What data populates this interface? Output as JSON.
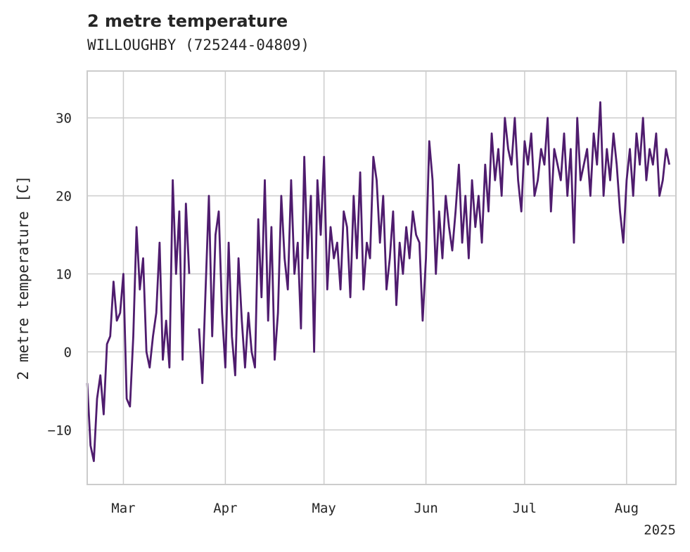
{
  "chart_data": {
    "type": "line",
    "title": "2 metre temperature",
    "subtitle": "WILLOUGHBY (725244-04809)",
    "xlabel": "",
    "ylabel": "2 metre temperature [C]",
    "xlim": [
      "2025-02-18",
      "2025-08-16"
    ],
    "ylim": [
      -17,
      36
    ],
    "yticks": [
      -10,
      0,
      10,
      20,
      30
    ],
    "xticks": [
      {
        "date": "2025-03-01",
        "label": "Mar"
      },
      {
        "date": "2025-04-01",
        "label": "Apr"
      },
      {
        "date": "2025-05-01",
        "label": "May"
      },
      {
        "date": "2025-06-01",
        "label": "Jun"
      },
      {
        "date": "2025-07-01",
        "label": "Jul"
      },
      {
        "date": "2025-08-01",
        "label": "Aug"
      }
    ],
    "year_label": "2025",
    "grid": true,
    "series": [
      {
        "color": "#4f1c6e",
        "x": [
          "2025-02-18",
          "2025-02-19",
          "2025-02-20",
          "2025-02-21",
          "2025-02-22",
          "2025-02-23",
          "2025-02-24",
          "2025-02-25",
          "2025-02-26",
          "2025-02-27",
          "2025-02-28",
          "2025-03-01",
          "2025-03-02",
          "2025-03-03",
          "2025-03-04",
          "2025-03-05",
          "2025-03-06",
          "2025-03-07",
          "2025-03-08",
          "2025-03-09",
          "2025-03-10",
          "2025-03-11",
          "2025-03-12",
          "2025-03-13",
          "2025-03-14",
          "2025-03-15",
          "2025-03-16",
          "2025-03-17",
          "2025-03-18",
          "2025-03-19",
          "2025-03-20",
          "2025-03-21",
          null,
          "2025-03-24",
          "2025-03-25",
          "2025-03-26",
          "2025-03-27",
          "2025-03-28",
          "2025-03-29",
          "2025-03-30",
          "2025-03-31",
          "2025-04-01",
          "2025-04-02",
          "2025-04-03",
          "2025-04-04",
          "2025-04-05",
          "2025-04-06",
          "2025-04-07",
          "2025-04-08",
          "2025-04-09",
          "2025-04-10",
          "2025-04-11",
          "2025-04-12",
          "2025-04-13",
          "2025-04-14",
          "2025-04-15",
          "2025-04-16",
          "2025-04-17",
          "2025-04-18",
          "2025-04-19",
          "2025-04-20",
          "2025-04-21",
          "2025-04-22",
          "2025-04-23",
          "2025-04-24",
          "2025-04-25",
          "2025-04-26",
          "2025-04-27",
          "2025-04-28",
          "2025-04-29",
          "2025-04-30",
          "2025-05-01",
          "2025-05-02",
          "2025-05-03",
          "2025-05-04",
          "2025-05-05",
          "2025-05-06",
          "2025-05-07",
          "2025-05-08",
          "2025-05-09",
          "2025-05-10",
          "2025-05-11",
          "2025-05-12",
          "2025-05-13",
          "2025-05-14",
          "2025-05-15",
          "2025-05-16",
          "2025-05-17",
          "2025-05-18",
          "2025-05-19",
          "2025-05-20",
          "2025-05-21",
          "2025-05-22",
          "2025-05-23",
          "2025-05-24",
          "2025-05-25",
          "2025-05-26",
          "2025-05-27",
          "2025-05-28",
          "2025-05-29",
          "2025-05-30",
          "2025-05-31",
          "2025-06-01",
          "2025-06-02",
          "2025-06-03",
          "2025-06-04",
          "2025-06-05",
          "2025-06-06",
          "2025-06-07",
          "2025-06-08",
          "2025-06-09",
          "2025-06-10",
          "2025-06-11",
          "2025-06-12",
          "2025-06-13",
          "2025-06-14",
          "2025-06-15",
          "2025-06-16",
          "2025-06-17",
          "2025-06-18",
          "2025-06-19",
          "2025-06-20",
          "2025-06-21",
          "2025-06-22",
          "2025-06-23",
          "2025-06-24",
          "2025-06-25",
          "2025-06-26",
          "2025-06-27",
          "2025-06-28",
          "2025-06-29",
          "2025-06-30",
          "2025-07-01",
          "2025-07-02",
          "2025-07-03",
          "2025-07-04",
          "2025-07-05",
          "2025-07-06",
          "2025-07-07",
          "2025-07-08",
          "2025-07-09",
          "2025-07-10",
          "2025-07-11",
          "2025-07-12",
          "2025-07-13",
          "2025-07-14",
          "2025-07-15",
          "2025-07-16",
          "2025-07-17",
          "2025-07-18",
          "2025-07-19",
          "2025-07-20",
          "2025-07-21",
          "2025-07-22",
          "2025-07-23",
          "2025-07-24",
          "2025-07-25",
          "2025-07-26",
          "2025-07-27",
          "2025-07-28",
          "2025-07-29",
          "2025-07-30",
          "2025-07-31",
          "2025-08-01",
          "2025-08-02",
          "2025-08-03",
          "2025-08-04",
          "2025-08-05",
          "2025-08-06",
          "2025-08-07",
          "2025-08-08",
          "2025-08-09",
          "2025-08-10",
          "2025-08-11",
          "2025-08-12",
          "2025-08-13",
          "2025-08-14"
        ],
        "y": [
          -4,
          -12,
          -14,
          -6,
          -3,
          -8,
          1,
          2,
          9,
          4,
          5,
          10,
          -6,
          -7,
          2,
          16,
          8,
          12,
          0,
          -2,
          2,
          5,
          14,
          -1,
          4,
          -2,
          22,
          10,
          18,
          -1,
          19,
          10,
          null,
          3,
          -4,
          8,
          20,
          2,
          15,
          18,
          5,
          -2,
          14,
          2,
          -3,
          12,
          4,
          -2,
          5,
          0,
          -2,
          17,
          7,
          22,
          4,
          16,
          -1,
          5,
          20,
          12,
          8,
          22,
          10,
          14,
          3,
          25,
          12,
          20,
          0,
          22,
          15,
          25,
          8,
          16,
          12,
          14,
          8,
          18,
          16,
          7,
          20,
          12,
          23,
          8,
          14,
          12,
          25,
          22,
          14,
          20,
          8,
          12,
          18,
          6,
          14,
          10,
          16,
          12,
          18,
          15,
          14,
          4,
          12,
          27,
          22,
          10,
          18,
          12,
          20,
          16,
          13,
          18,
          24,
          14,
          20,
          12,
          22,
          16,
          20,
          14,
          24,
          18,
          28,
          22,
          26,
          20,
          30,
          26,
          24,
          30,
          22,
          18,
          27,
          24,
          28,
          20,
          22,
          26,
          24,
          30,
          18,
          26,
          24,
          22,
          28,
          20,
          26,
          14,
          30,
          22,
          24,
          26,
          20,
          28,
          24,
          32,
          20,
          26,
          22,
          28,
          24,
          18,
          14,
          22,
          26,
          20,
          28,
          24,
          30,
          22,
          26,
          24,
          28,
          20,
          22,
          26,
          24
        ]
      }
    ]
  }
}
